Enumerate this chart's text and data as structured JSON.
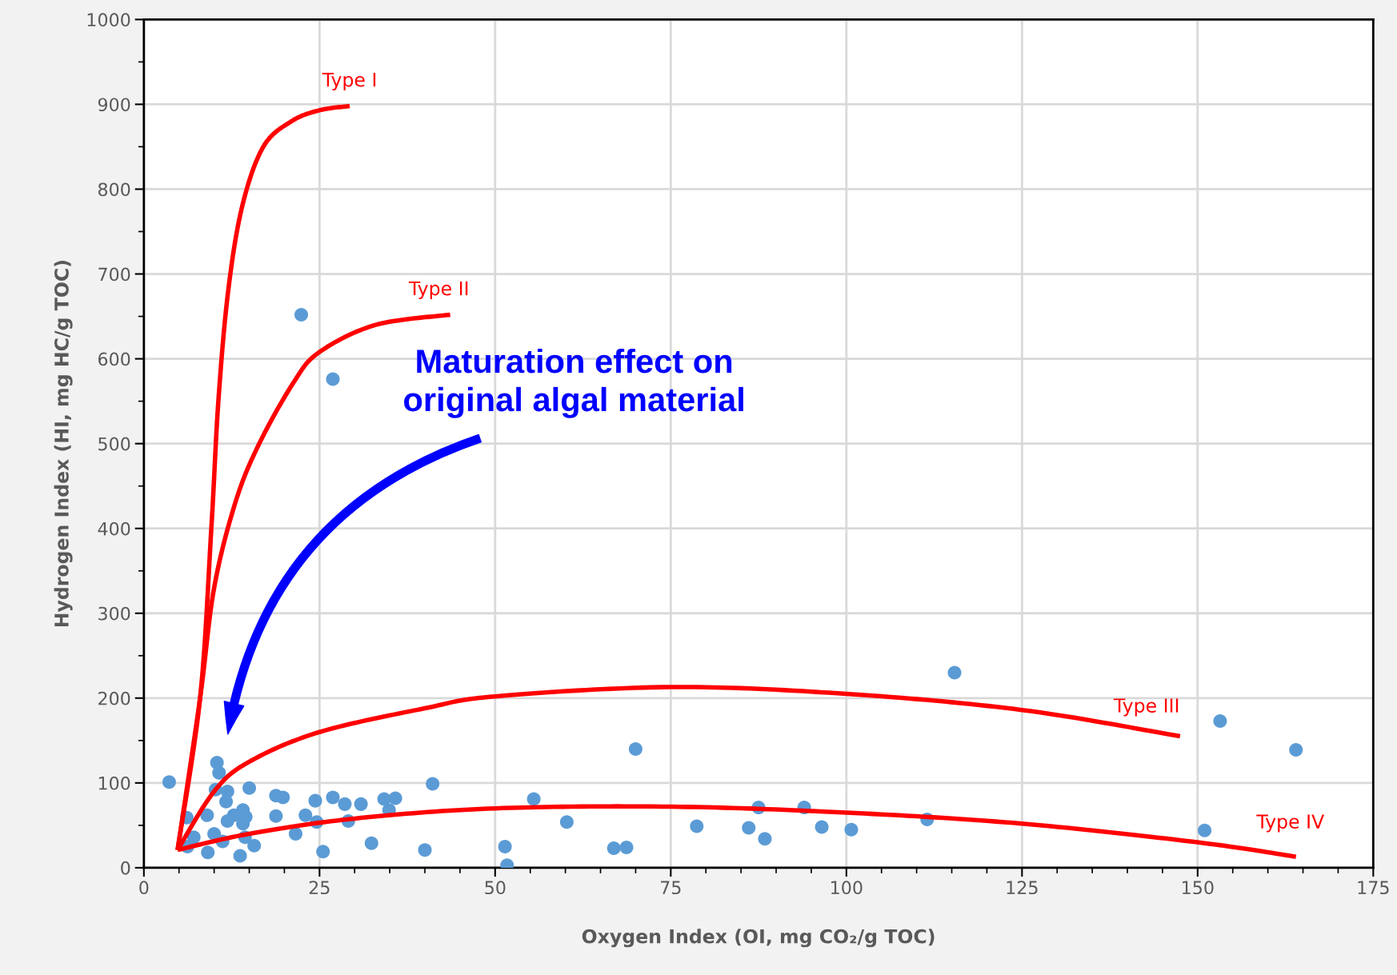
{
  "chart_data": {
    "type": "scatter",
    "xlabel": "Oxygen Index (OI, mg CO₂/g TOC)",
    "ylabel": "Hydrogen Index (HI, mg HC/g TOC)",
    "xlim": [
      0,
      175
    ],
    "xticks": [
      0,
      25,
      50,
      75,
      100,
      125,
      150,
      175
    ],
    "ylim": [
      0,
      1000
    ],
    "yticks": [
      0,
      100,
      200,
      300,
      400,
      500,
      600,
      700,
      800,
      900,
      1000
    ],
    "grid": true,
    "annotations": [
      "Maturation effect on\noriginal algal material"
    ],
    "series": [
      {
        "marker": "circle",
        "color": "#5b9bd5",
        "x": [
          3.6,
          10.4,
          10.7,
          10.2,
          11.9,
          11.7,
          9.0,
          6.1,
          7.1,
          6.2,
          9.1,
          10.0,
          11.2,
          11.9,
          12.8,
          14.1,
          14.5,
          14.1,
          13.7,
          15.0,
          14.4,
          15.7,
          18.8,
          19.8,
          18.8,
          21.6,
          23.0,
          24.4,
          24.6,
          25.5,
          26.9,
          28.6,
          29.1,
          30.9,
          32.4,
          34.2,
          34.9,
          35.8,
          40.0,
          41.1,
          22.4,
          26.9,
          51.4,
          51.7,
          55.5,
          60.2,
          66.9,
          68.7,
          70.0,
          78.7,
          86.1,
          87.5,
          88.4,
          94.0,
          96.5,
          100.7,
          111.5,
          115.4,
          151.0,
          153.2,
          164.0
        ],
        "values": [
          101,
          124,
          112,
          92,
          90,
          78,
          62,
          59,
          36,
          25,
          18,
          40,
          31,
          55,
          62,
          68,
          60,
          52,
          14,
          94,
          36,
          26,
          85,
          83,
          61,
          40,
          62,
          79,
          54,
          19,
          83,
          75,
          55,
          75,
          29,
          81,
          68,
          82,
          21,
          99,
          652,
          576,
          25,
          3,
          81,
          54,
          23,
          24,
          140,
          49,
          47,
          71,
          34,
          71,
          48,
          45,
          57,
          230,
          44,
          173,
          139
        ]
      },
      {
        "type": "line",
        "name": "Type I",
        "color": "#ff0000",
        "x": [
          4.8,
          8,
          9.6,
          10.6,
          12,
          14,
          17,
          21,
          25,
          29.3
        ],
        "values": [
          21,
          200,
          400,
          550,
          680,
          780,
          850,
          880,
          893,
          898
        ]
      },
      {
        "type": "line",
        "name": "Type II",
        "color": "#ff0000",
        "x": [
          4.8,
          8,
          10,
          13,
          16.3,
          21.3,
          25,
          33,
          43.6
        ],
        "values": [
          21,
          200,
          330,
          430,
          498,
          572,
          608,
          640,
          652
        ]
      },
      {
        "type": "line",
        "name": "Type III",
        "color": "#ff0000",
        "x": [
          4.8,
          10,
          15,
          25,
          40,
          50,
          75,
          100,
          125,
          147.5
        ],
        "values": [
          21,
          90,
          125,
          160,
          188,
          202,
          213,
          205,
          186,
          155
        ]
      },
      {
        "type": "line",
        "name": "Type IV",
        "color": "#ff0000",
        "x": [
          4.8,
          15,
          30,
          50,
          75,
          100,
          125,
          150,
          164
        ],
        "values": [
          21,
          40,
          58,
          70,
          72,
          65,
          52,
          30,
          13
        ]
      }
    ]
  }
}
